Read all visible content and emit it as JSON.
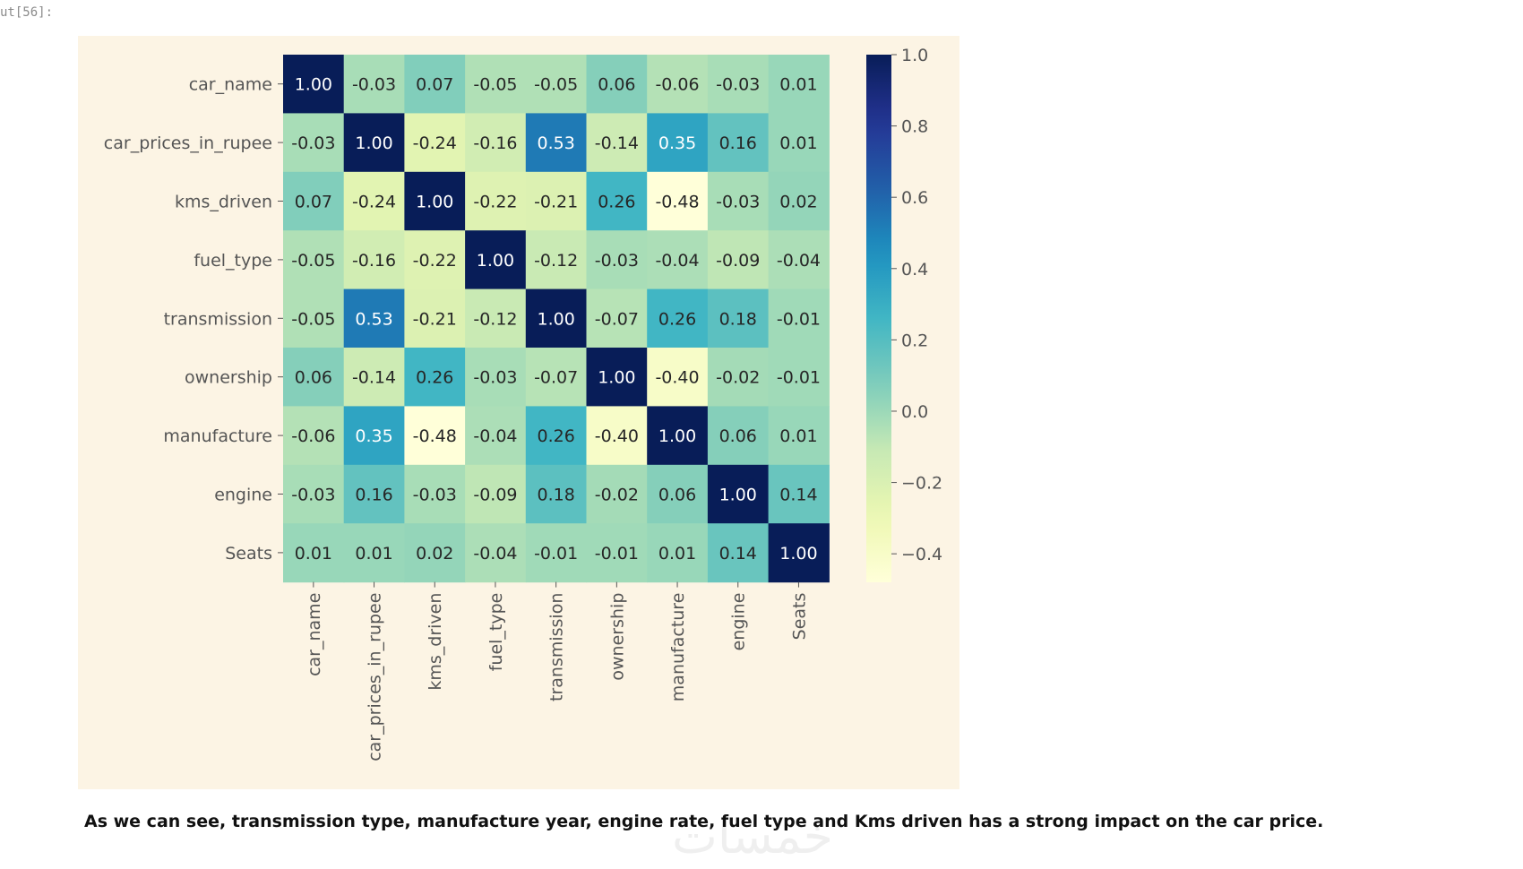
{
  "prompt": {
    "label": "ut[56]:"
  },
  "chart_data": {
    "type": "heatmap",
    "title": "",
    "rows": [
      "car_name",
      "car_prices_in_rupee",
      "kms_driven",
      "fuel_type",
      "transmission",
      "ownership",
      "manufacture",
      "engine",
      "Seats"
    ],
    "cols": [
      "car_name",
      "car_prices_in_rupee",
      "kms_driven",
      "fuel_type",
      "transmission",
      "ownership",
      "manufacture",
      "engine",
      "Seats"
    ],
    "values": [
      [
        1.0,
        -0.03,
        0.07,
        -0.05,
        -0.05,
        0.06,
        -0.06,
        -0.03,
        0.01
      ],
      [
        -0.03,
        1.0,
        -0.24,
        -0.16,
        0.53,
        -0.14,
        0.35,
        0.16,
        0.01
      ],
      [
        0.07,
        -0.24,
        1.0,
        -0.22,
        -0.21,
        0.26,
        -0.48,
        -0.03,
        0.02
      ],
      [
        -0.05,
        -0.16,
        -0.22,
        1.0,
        -0.12,
        -0.03,
        -0.04,
        -0.09,
        -0.04
      ],
      [
        -0.05,
        0.53,
        -0.21,
        -0.12,
        1.0,
        -0.07,
        0.26,
        0.18,
        -0.01
      ],
      [
        0.06,
        -0.14,
        0.26,
        -0.03,
        -0.07,
        1.0,
        -0.4,
        -0.02,
        -0.01
      ],
      [
        -0.06,
        0.35,
        -0.48,
        -0.04,
        0.26,
        -0.4,
        1.0,
        0.06,
        0.01
      ],
      [
        -0.03,
        0.16,
        -0.03,
        -0.09,
        0.18,
        -0.02,
        0.06,
        1.0,
        0.14
      ],
      [
        0.01,
        0.01,
        0.02,
        -0.04,
        -0.01,
        -0.01,
        0.01,
        0.14,
        1.0
      ]
    ],
    "colorbar": {
      "vmin": -0.48,
      "vmax": 1.0,
      "ticks": [
        1.0,
        0.8,
        0.6,
        0.4,
        0.2,
        0.0,
        -0.2,
        -0.4
      ],
      "tick_labels": [
        "1.0",
        "0.8",
        "0.6",
        "0.4",
        "0.2",
        "0.0",
        "−0.2",
        "−0.4"
      ]
    },
    "colormap": "YlGnBu",
    "annotations_format": "0.00"
  },
  "caption": "As we can see, transmission type, manufacture year, engine rate, fuel type and Kms driven has a strong impact on the car price.",
  "watermark": "خمسات"
}
